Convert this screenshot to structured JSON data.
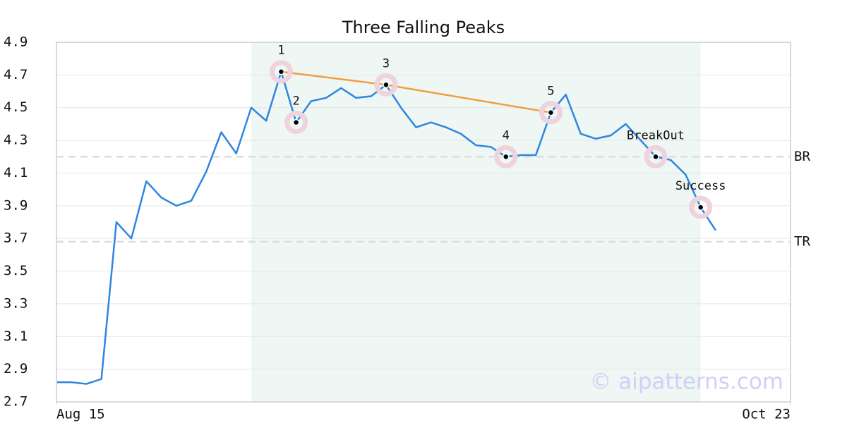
{
  "chart_data": {
    "type": "line",
    "title": "Three Falling Peaks",
    "x": [
      0,
      1,
      2,
      3,
      4,
      5,
      6,
      7,
      8,
      9,
      10,
      11,
      12,
      13,
      14,
      15,
      16,
      17,
      18,
      19,
      20,
      21,
      22,
      23,
      24,
      25,
      26,
      27,
      28,
      29,
      30,
      31,
      32,
      33,
      34,
      35,
      36,
      37,
      38,
      39,
      40,
      41,
      42,
      43,
      44
    ],
    "series": [
      {
        "color": "#2f86e0",
        "values": [
          2.82,
          2.82,
          2.81,
          2.84,
          3.8,
          3.7,
          4.05,
          3.95,
          3.9,
          3.93,
          4.11,
          4.35,
          4.22,
          4.5,
          4.42,
          4.72,
          4.41,
          4.54,
          4.56,
          4.62,
          4.56,
          4.57,
          4.64,
          4.5,
          4.38,
          4.41,
          4.38,
          4.34,
          4.27,
          4.26,
          4.2,
          4.21,
          4.21,
          4.47,
          4.58,
          4.34,
          4.31,
          4.33,
          4.4,
          4.3,
          4.2,
          4.18,
          4.09,
          3.89,
          3.75
        ]
      }
    ],
    "xlim": [
      0,
      49
    ],
    "xticks": [
      {
        "value": 0,
        "label": "Aug 15"
      },
      {
        "value": 49,
        "label": "Oct 23"
      }
    ],
    "ylim": [
      2.7,
      4.9
    ],
    "yticks": [
      2.7,
      2.9,
      3.1,
      3.3,
      3.5,
      3.7,
      3.9,
      4.1,
      4.3,
      4.5,
      4.7,
      4.9
    ],
    "grid": true,
    "shaded_region": {
      "x": [
        13,
        43
      ],
      "color": "#eef7f3"
    },
    "trendline": {
      "x": [
        15,
        22,
        33
      ],
      "y": [
        4.72,
        4.64,
        4.47
      ],
      "color": "#f59b42"
    },
    "annotations": [
      {
        "label": "1",
        "x": 15,
        "y": 4.72
      },
      {
        "label": "2",
        "x": 16,
        "y": 4.41
      },
      {
        "label": "3",
        "x": 22,
        "y": 4.64
      },
      {
        "label": "4",
        "x": 30,
        "y": 4.2
      },
      {
        "label": "5",
        "x": 33,
        "y": 4.47
      },
      {
        "label": "BreakOut",
        "x": 40,
        "y": 4.2
      },
      {
        "label": "Success",
        "x": 43,
        "y": 3.89
      }
    ],
    "levels": [
      {
        "label": "BR",
        "value": 4.2
      },
      {
        "label": "TR",
        "value": 3.68
      }
    ],
    "watermark": "© aipatterns.com"
  }
}
